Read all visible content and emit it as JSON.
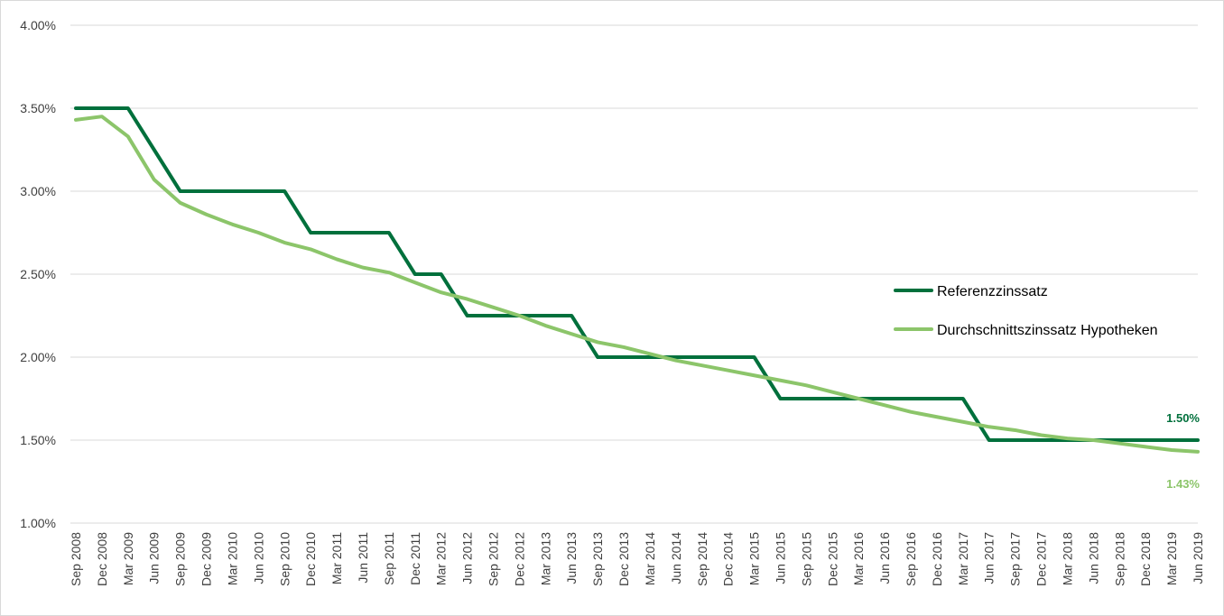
{
  "chart_data": {
    "type": "line",
    "title": "",
    "xlabel": "",
    "ylabel": "",
    "ylim": [
      1.0,
      4.0
    ],
    "yticks": [
      "1.00%",
      "1.50%",
      "2.00%",
      "2.50%",
      "3.00%",
      "3.50%",
      "4.00%"
    ],
    "ytick_values": [
      1.0,
      1.5,
      2.0,
      2.5,
      3.0,
      3.5,
      4.0
    ],
    "grid": true,
    "legend_position": "right",
    "categories": [
      "Sep 2008",
      "Dec 2008",
      "Mar 2009",
      "Jun 2009",
      "Sep 2009",
      "Dec 2009",
      "Mar 2010",
      "Jun 2010",
      "Sep 2010",
      "Dec 2010",
      "Mar 2011",
      "Jun 2011",
      "Sep 2011",
      "Dec 2011",
      "Mar 2012",
      "Jun 2012",
      "Sep 2012",
      "Dec 2012",
      "Mar 2013",
      "Jun 2013",
      "Sep 2013",
      "Dec 2013",
      "Mar 2014",
      "Jun 2014",
      "Sep 2014",
      "Dec 2014",
      "Mar 2015",
      "Jun 2015",
      "Sep 2015",
      "Dec 2015",
      "Mar 2016",
      "Jun 2016",
      "Sep 2016",
      "Dec 2016",
      "Mar 2017",
      "Jun 2017",
      "Sep 2017",
      "Dec 2017",
      "Mar 2018",
      "Jun 2018",
      "Sep 2018",
      "Dec 2018",
      "Mar 2019",
      "Jun 2019"
    ],
    "series": [
      {
        "name": "Referenzzinssatz",
        "color": "#00703c",
        "step": true,
        "values": [
          3.5,
          3.5,
          3.5,
          3.25,
          3.0,
          3.0,
          3.0,
          3.0,
          3.0,
          2.75,
          2.75,
          2.75,
          2.75,
          2.5,
          2.5,
          2.25,
          2.25,
          2.25,
          2.25,
          2.25,
          2.0,
          2.0,
          2.0,
          2.0,
          2.0,
          2.0,
          2.0,
          1.75,
          1.75,
          1.75,
          1.75,
          1.75,
          1.75,
          1.75,
          1.75,
          1.5,
          1.5,
          1.5,
          1.5,
          1.5,
          1.5,
          1.5,
          1.5,
          1.5
        ],
        "end_label": "1.50%"
      },
      {
        "name": "Durchschnittszinssatz Hypotheken",
        "color": "#8cc56a",
        "step": false,
        "values": [
          3.43,
          3.45,
          3.33,
          3.07,
          2.93,
          2.86,
          2.8,
          2.75,
          2.69,
          2.65,
          2.59,
          2.54,
          2.51,
          2.45,
          2.39,
          2.35,
          2.3,
          2.25,
          2.19,
          2.14,
          2.09,
          2.06,
          2.02,
          1.98,
          1.95,
          1.92,
          1.89,
          1.86,
          1.83,
          1.79,
          1.75,
          1.71,
          1.67,
          1.64,
          1.61,
          1.58,
          1.56,
          1.53,
          1.51,
          1.5,
          1.48,
          1.46,
          1.44,
          1.43
        ],
        "end_label": "1.43%"
      }
    ]
  }
}
